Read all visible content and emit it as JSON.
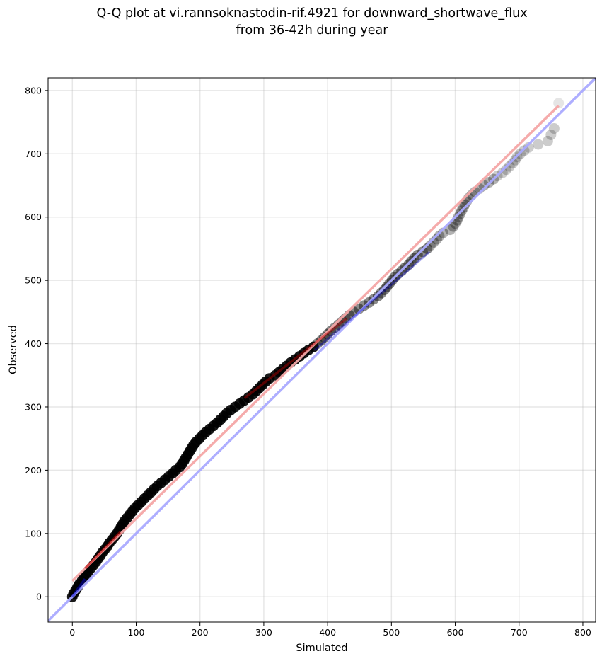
{
  "chart_data": {
    "type": "scatter",
    "title_lines": [
      "Q-Q plot at vi.rannsoknastodin-rif.4921 for downward_shortwave_flux",
      "from 36-42h during year"
    ],
    "xlabel": "Simulated",
    "ylabel": "Observed",
    "xlim": [
      -38,
      820
    ],
    "ylim": [
      -40,
      820
    ],
    "xticks": [
      0,
      100,
      200,
      300,
      400,
      500,
      600,
      700,
      800
    ],
    "yticks": [
      0,
      100,
      200,
      300,
      400,
      500,
      600,
      700,
      800
    ],
    "grid": true,
    "colors": {
      "points": "#000000",
      "identity_line": "#aaaaff",
      "fit_line": "#f4a6a6",
      "highlight_blue": "#0000cc",
      "highlight_red": "#bb0000"
    },
    "identity_line": {
      "x": [
        -38,
        820
      ],
      "y": [
        -38,
        820
      ]
    },
    "fit_line": {
      "x": [
        0,
        762
      ],
      "y": [
        25,
        776
      ]
    },
    "quantile_points": [
      [
        0,
        0
      ],
      [
        2,
        5
      ],
      [
        5,
        10
      ],
      [
        8,
        15
      ],
      [
        11,
        20
      ],
      [
        15,
        25
      ],
      [
        18,
        30
      ],
      [
        22,
        35
      ],
      [
        25,
        40
      ],
      [
        29,
        45
      ],
      [
        33,
        50
      ],
      [
        37,
        55
      ],
      [
        40,
        60
      ],
      [
        44,
        65
      ],
      [
        47,
        70
      ],
      [
        51,
        75
      ],
      [
        55,
        80
      ],
      [
        58,
        85
      ],
      [
        62,
        90
      ],
      [
        66,
        95
      ],
      [
        70,
        100
      ],
      [
        73,
        105
      ],
      [
        76,
        110
      ],
      [
        79,
        115
      ],
      [
        82,
        120
      ],
      [
        86,
        125
      ],
      [
        90,
        130
      ],
      [
        94,
        135
      ],
      [
        98,
        140
      ],
      [
        103,
        145
      ],
      [
        108,
        150
      ],
      [
        113,
        155
      ],
      [
        118,
        160
      ],
      [
        123,
        165
      ],
      [
        128,
        170
      ],
      [
        133,
        175
      ],
      [
        139,
        180
      ],
      [
        145,
        185
      ],
      [
        151,
        190
      ],
      [
        157,
        195
      ],
      [
        162,
        200
      ],
      [
        168,
        205
      ],
      [
        172,
        210
      ],
      [
        175,
        215
      ],
      [
        178,
        220
      ],
      [
        181,
        225
      ],
      [
        184,
        230
      ],
      [
        187,
        235
      ],
      [
        190,
        240
      ],
      [
        194,
        245
      ],
      [
        199,
        250
      ],
      [
        204,
        255
      ],
      [
        209,
        260
      ],
      [
        215,
        265
      ],
      [
        221,
        270
      ],
      [
        227,
        275
      ],
      [
        232,
        280
      ],
      [
        237,
        285
      ],
      [
        242,
        290
      ],
      [
        248,
        295
      ],
      [
        255,
        300
      ],
      [
        262,
        305
      ],
      [
        269,
        310
      ],
      [
        276,
        315
      ],
      [
        283,
        320
      ],
      [
        288,
        325
      ],
      [
        293,
        330
      ],
      [
        298,
        335
      ],
      [
        303,
        340
      ],
      [
        309,
        345
      ],
      [
        318,
        350
      ],
      [
        324,
        355
      ],
      [
        330,
        360
      ],
      [
        336,
        365
      ],
      [
        342,
        370
      ],
      [
        349,
        375
      ],
      [
        356,
        380
      ],
      [
        363,
        385
      ],
      [
        370,
        390
      ],
      [
        378,
        395
      ],
      [
        384,
        400
      ],
      [
        390,
        405
      ],
      [
        395,
        410
      ],
      [
        400,
        415
      ],
      [
        405,
        420
      ],
      [
        411,
        425
      ],
      [
        417,
        430
      ],
      [
        423,
        435
      ],
      [
        428,
        440
      ],
      [
        434,
        445
      ],
      [
        441,
        450
      ],
      [
        449,
        455
      ],
      [
        457,
        460
      ],
      [
        465,
        465
      ],
      [
        472,
        470
      ],
      [
        479,
        475
      ],
      [
        484,
        480
      ],
      [
        489,
        485
      ],
      [
        493,
        490
      ],
      [
        497,
        495
      ],
      [
        501,
        500
      ],
      [
        505,
        505
      ],
      [
        510,
        510
      ],
      [
        516,
        515
      ],
      [
        521,
        520
      ],
      [
        527,
        525
      ],
      [
        531,
        530
      ],
      [
        536,
        535
      ],
      [
        541,
        540
      ],
      [
        549,
        545
      ],
      [
        556,
        550
      ],
      [
        561,
        555
      ],
      [
        566,
        560
      ],
      [
        571,
        565
      ],
      [
        575,
        570
      ],
      [
        581,
        575
      ],
      [
        592,
        580
      ],
      [
        597,
        585
      ],
      [
        600,
        590
      ],
      [
        603,
        595
      ],
      [
        605,
        600
      ],
      [
        608,
        605
      ],
      [
        610,
        610
      ],
      [
        613,
        615
      ],
      [
        615,
        620
      ],
      [
        618,
        625
      ],
      [
        621,
        630
      ],
      [
        626,
        635
      ],
      [
        631,
        640
      ],
      [
        638,
        645
      ],
      [
        645,
        650
      ],
      [
        653,
        655
      ],
      [
        660,
        660
      ],
      [
        666,
        665
      ],
      [
        674,
        670
      ],
      [
        680,
        675
      ],
      [
        685,
        680
      ],
      [
        690,
        685
      ],
      [
        694,
        690
      ],
      [
        697,
        695
      ],
      [
        702,
        700
      ],
      [
        708,
        705
      ],
      [
        715,
        710
      ],
      [
        730,
        715
      ],
      [
        745,
        720
      ],
      [
        750,
        730
      ],
      [
        755,
        740
      ],
      [
        762,
        780
      ]
    ]
  }
}
